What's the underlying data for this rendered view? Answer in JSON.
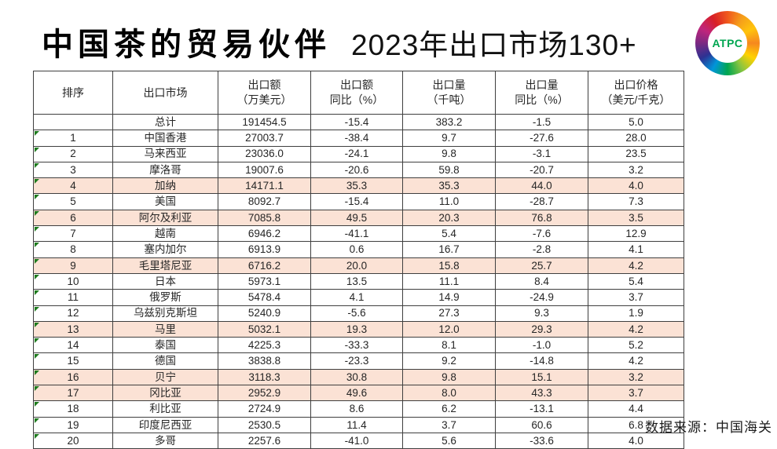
{
  "slide": {
    "title_bold": "中国茶的贸易伙伴",
    "title_regular": "2023年出口市场130+",
    "source_note": "数据来源：中国海关",
    "logo_text": "ATPC"
  },
  "colors": {
    "highlight_row": "#fbe2d5",
    "table_border": "#3f3f3f",
    "flag_triangle_green": "#1e7b1e",
    "logo_text_green": "#00a651"
  },
  "chart_data": {
    "type": "table",
    "title": "中国茶的贸易伙伴 2023年出口市场130+",
    "columns": [
      {
        "line1": "排序",
        "line2": ""
      },
      {
        "line1": "出口市场",
        "line2": ""
      },
      {
        "line1": "出口额",
        "line2": "（万美元）"
      },
      {
        "line1": "出口额",
        "line2": "同比（%）"
      },
      {
        "line1": "出口量",
        "line2": "（千吨）"
      },
      {
        "line1": "出口量",
        "line2": "同比（%）"
      },
      {
        "line1": "出口价格",
        "line2": "（美元/千克）"
      }
    ],
    "highlighted_ranks": [
      4,
      6,
      9,
      13,
      16,
      17
    ],
    "rows": [
      {
        "rank": "",
        "market": "总计",
        "value": "191454.5",
        "value_yoy": "-15.4",
        "volume": "383.2",
        "volume_yoy": "-1.5",
        "price": "5.0",
        "highlight": false
      },
      {
        "rank": "1",
        "market": "中国香港",
        "value": "27003.7",
        "value_yoy": "-38.4",
        "volume": "9.7",
        "volume_yoy": "-27.6",
        "price": "28.0",
        "highlight": false
      },
      {
        "rank": "2",
        "market": "马来西亚",
        "value": "23036.0",
        "value_yoy": "-24.1",
        "volume": "9.8",
        "volume_yoy": "-3.1",
        "price": "23.5",
        "highlight": false
      },
      {
        "rank": "3",
        "market": "摩洛哥",
        "value": "19007.6",
        "value_yoy": "-20.6",
        "volume": "59.8",
        "volume_yoy": "-20.7",
        "price": "3.2",
        "highlight": false
      },
      {
        "rank": "4",
        "market": "加纳",
        "value": "14171.1",
        "value_yoy": "35.3",
        "volume": "35.3",
        "volume_yoy": "44.0",
        "price": "4.0",
        "highlight": true
      },
      {
        "rank": "5",
        "market": "美国",
        "value": "8092.7",
        "value_yoy": "-15.4",
        "volume": "11.0",
        "volume_yoy": "-28.7",
        "price": "7.3",
        "highlight": false
      },
      {
        "rank": "6",
        "market": "阿尔及利亚",
        "value": "7085.8",
        "value_yoy": "49.5",
        "volume": "20.3",
        "volume_yoy": "76.8",
        "price": "3.5",
        "highlight": true
      },
      {
        "rank": "7",
        "market": "越南",
        "value": "6946.2",
        "value_yoy": "-41.1",
        "volume": "5.4",
        "volume_yoy": "-7.6",
        "price": "12.9",
        "highlight": false
      },
      {
        "rank": "8",
        "market": "塞内加尔",
        "value": "6913.9",
        "value_yoy": "0.6",
        "volume": "16.7",
        "volume_yoy": "-2.8",
        "price": "4.1",
        "highlight": false
      },
      {
        "rank": "9",
        "market": "毛里塔尼亚",
        "value": "6716.2",
        "value_yoy": "20.0",
        "volume": "15.8",
        "volume_yoy": "25.7",
        "price": "4.2",
        "highlight": true
      },
      {
        "rank": "10",
        "market": "日本",
        "value": "5973.1",
        "value_yoy": "13.5",
        "volume": "11.1",
        "volume_yoy": "8.4",
        "price": "5.4",
        "highlight": false
      },
      {
        "rank": "11",
        "market": "俄罗斯",
        "value": "5478.4",
        "value_yoy": "4.1",
        "volume": "14.9",
        "volume_yoy": "-24.9",
        "price": "3.7",
        "highlight": false
      },
      {
        "rank": "12",
        "market": "乌兹别克斯坦",
        "value": "5240.9",
        "value_yoy": "-5.6",
        "volume": "27.3",
        "volume_yoy": "9.3",
        "price": "1.9",
        "highlight": false
      },
      {
        "rank": "13",
        "market": "马里",
        "value": "5032.1",
        "value_yoy": "19.3",
        "volume": "12.0",
        "volume_yoy": "29.3",
        "price": "4.2",
        "highlight": true
      },
      {
        "rank": "14",
        "market": "泰国",
        "value": "4225.3",
        "value_yoy": "-33.3",
        "volume": "8.1",
        "volume_yoy": "-1.0",
        "price": "5.2",
        "highlight": false
      },
      {
        "rank": "15",
        "market": "德国",
        "value": "3838.8",
        "value_yoy": "-23.3",
        "volume": "9.2",
        "volume_yoy": "-14.8",
        "price": "4.2",
        "highlight": false
      },
      {
        "rank": "16",
        "market": "贝宁",
        "value": "3118.3",
        "value_yoy": "30.8",
        "volume": "9.8",
        "volume_yoy": "15.1",
        "price": "3.2",
        "highlight": true
      },
      {
        "rank": "17",
        "market": "冈比亚",
        "value": "2952.9",
        "value_yoy": "49.6",
        "volume": "8.0",
        "volume_yoy": "43.3",
        "price": "3.7",
        "highlight": true
      },
      {
        "rank": "18",
        "market": "利比亚",
        "value": "2724.9",
        "value_yoy": "8.6",
        "volume": "6.2",
        "volume_yoy": "-13.1",
        "price": "4.4",
        "highlight": false
      },
      {
        "rank": "19",
        "market": "印度尼西亚",
        "value": "2530.5",
        "value_yoy": "11.4",
        "volume": "3.7",
        "volume_yoy": "60.6",
        "price": "6.8",
        "highlight": false
      },
      {
        "rank": "20",
        "market": "多哥",
        "value": "2257.6",
        "value_yoy": "-41.0",
        "volume": "5.6",
        "volume_yoy": "-33.6",
        "price": "4.0",
        "highlight": false
      }
    ]
  }
}
